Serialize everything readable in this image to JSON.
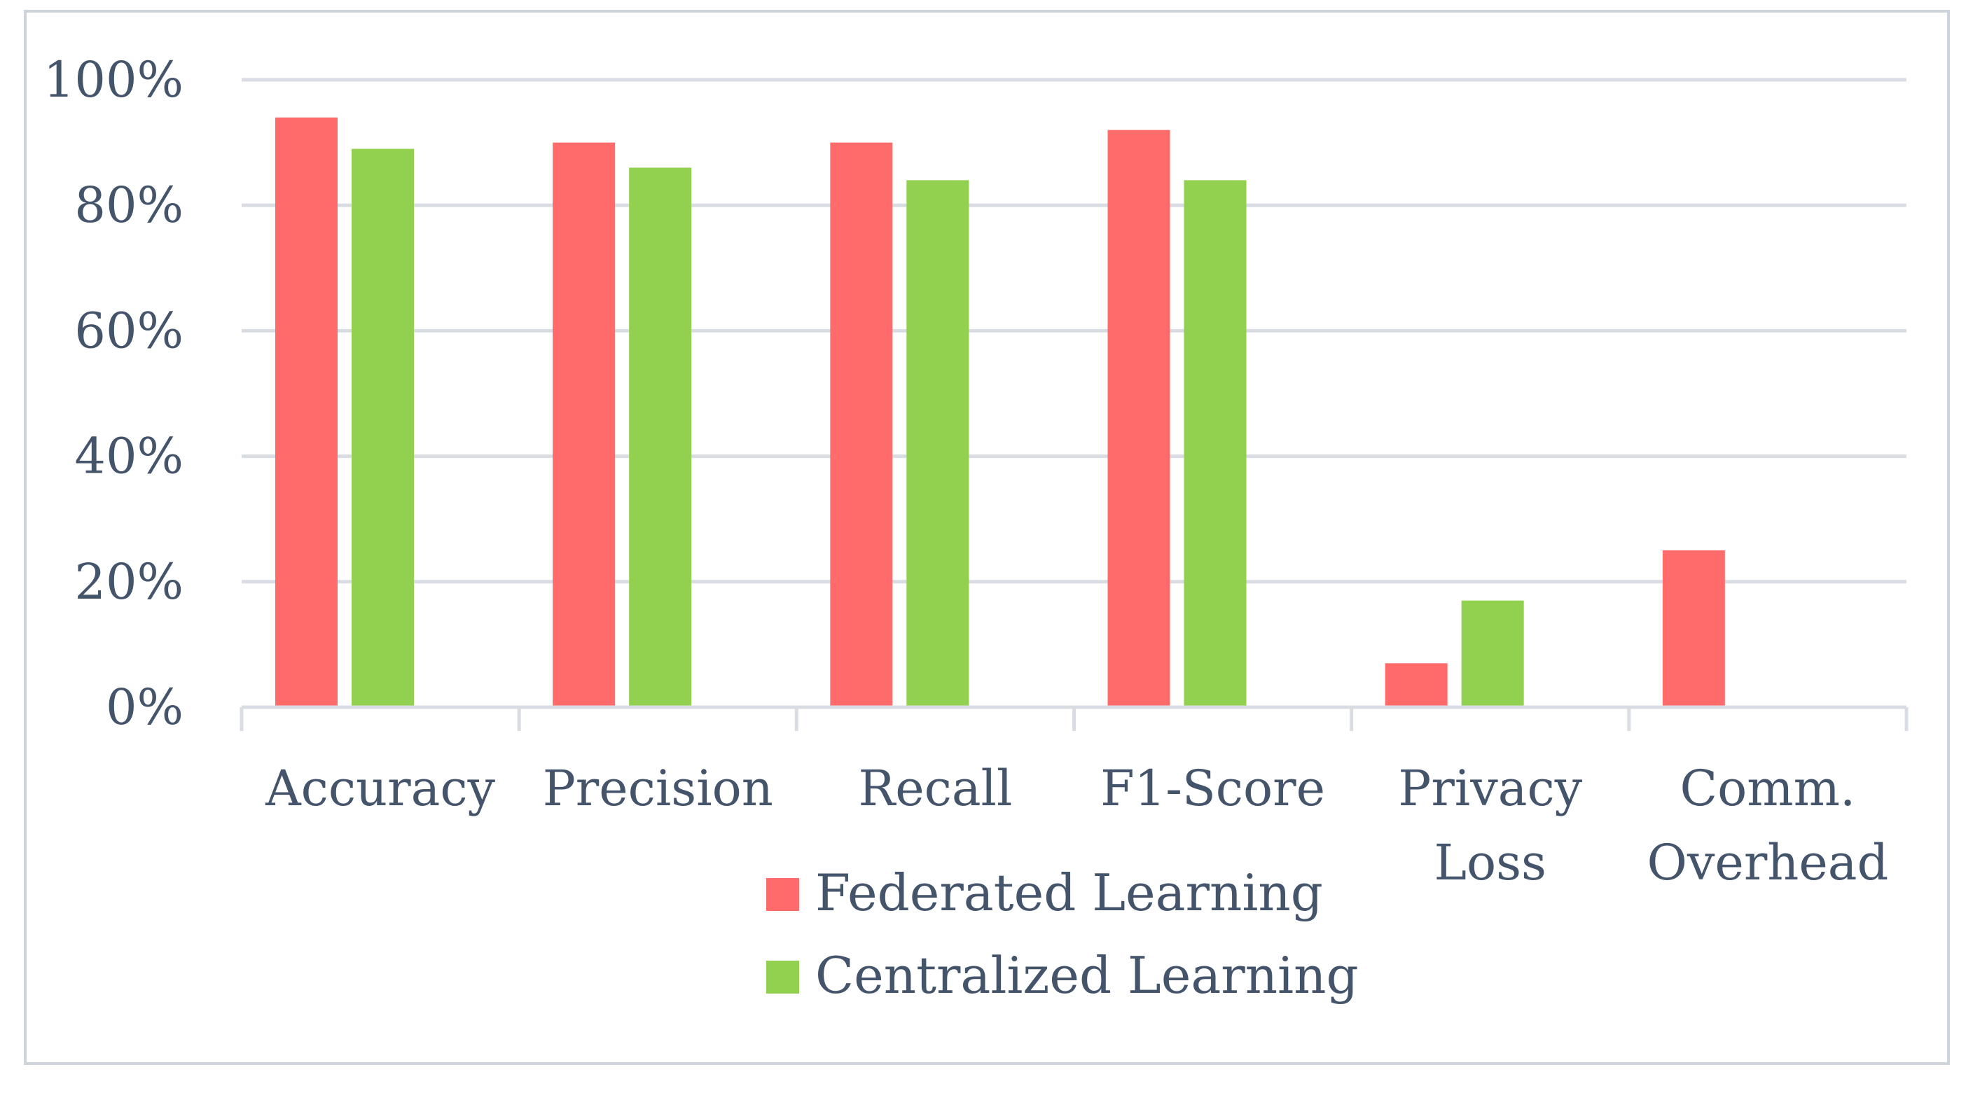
{
  "chart_data": {
    "type": "bar",
    "title": "",
    "xlabel": "",
    "ylabel": "",
    "categories": [
      [
        "Accuracy"
      ],
      [
        "Precision"
      ],
      [
        "Recall"
      ],
      [
        "F1-Score"
      ],
      [
        "Privacy",
        "Loss"
      ],
      [
        "Comm.",
        "Overhead"
      ]
    ],
    "series": [
      {
        "name": "Federated Learning",
        "color": "#ff6b6b",
        "values": [
          94,
          90,
          90,
          92,
          7,
          25
        ]
      },
      {
        "name": "Centralized Learning",
        "color": "#92d050",
        "values": [
          89,
          86,
          84,
          84,
          17,
          null
        ]
      }
    ],
    "ylim": [
      0,
      100
    ],
    "yticks": [
      0,
      20,
      40,
      60,
      80,
      100
    ],
    "ytick_labels": [
      "0%",
      "20%",
      "40%",
      "60%",
      "80%",
      "100%"
    ],
    "grid": true,
    "legend_position": "bottom-center"
  }
}
